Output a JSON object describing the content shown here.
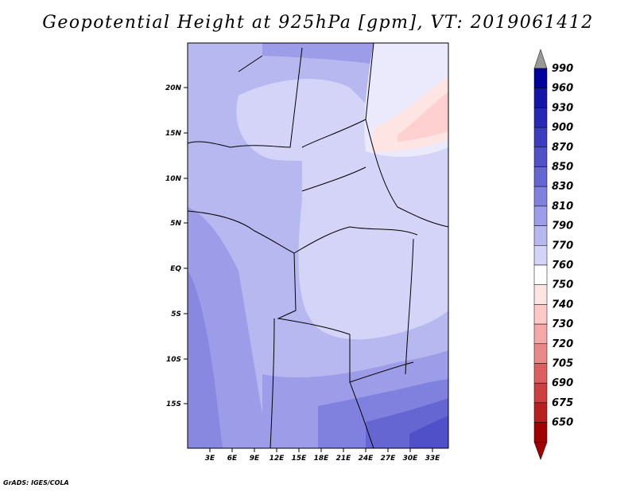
{
  "title": "Geopotential Height at 925hPa [gpm], VT: 2019061412",
  "credit": "GrADS: IGES/COLA",
  "map": {
    "lon_labels": [
      "3E",
      "6E",
      "9E",
      "12E",
      "15E",
      "18E",
      "21E",
      "24E",
      "27E",
      "30E",
      "33E"
    ],
    "lat_labels": [
      "20N",
      "15N",
      "10N",
      "5N",
      "EQ",
      "5S",
      "10S",
      "15S"
    ],
    "field": "Geopotential Height",
    "level": "925hPa",
    "units": "gpm"
  },
  "colorbar": {
    "levels": [
      "990",
      "960",
      "930",
      "900",
      "870",
      "850",
      "830",
      "810",
      "790",
      "770",
      "760",
      "750",
      "740",
      "730",
      "720",
      "705",
      "690",
      "675",
      "650"
    ],
    "colors": [
      "#00009e",
      "#1414a8",
      "#2828b4",
      "#3c3cbe",
      "#5050c8",
      "#6666d2",
      "#8080de",
      "#9c9ce8",
      "#b8b8f0",
      "#d4d4f8",
      "#ffffff",
      "#ffe4e4",
      "#ffc8c8",
      "#f4a8a8",
      "#e88888",
      "#dc6060",
      "#cc4040",
      "#b82020",
      "#a00000"
    ],
    "top_arrow_color": "#999999",
    "bottom_arrow_color": "#a00000"
  }
}
